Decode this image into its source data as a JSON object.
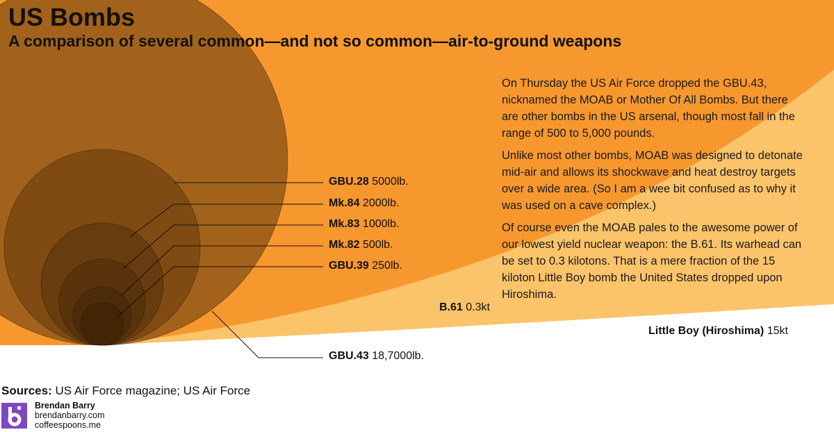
{
  "title": "US Bombs",
  "subtitle": "A comparison of several common—and not so common—air-to-ground weapons",
  "paragraphs": [
    "On Thursday the US Air Force dropped the GBU.43, nicknamed the MOAB or Mother Of All Bombs. But there are other bombs in the US arsenal, though most fall in the range of 500 to 5,000 pounds.",
    "Unlike most other bombs, MOAB was designed to detonate mid-air and allows its shockwave and heat destroy targets over a wide area. (So I am a wee bit confused as to why it was used on a cave complex.)",
    "Of course even the MOAB pales to the awesome power of our lowest yield nuclear weapon: the B.61. Its warhead can be set to 0.3 kilotons. That is a mere fraction of the 15 kiloton Little Boy bomb the United States dropped upon Hiroshima."
  ],
  "bombs": [
    {
      "name": "GBU.43",
      "value": "18,7000lb."
    },
    {
      "name": "GBU.28",
      "value": "5000lb."
    },
    {
      "name": "Mk.84",
      "value": "2000lb."
    },
    {
      "name": "Mk.83",
      "value": "1000lb."
    },
    {
      "name": "Mk.82",
      "value": "500lb."
    },
    {
      "name": "GBU.39",
      "value": "250lb."
    }
  ],
  "nuclear": [
    {
      "name": "B.61",
      "value": "0.3kt"
    },
    {
      "name": "Little Boy (Hiroshima)",
      "value": "15kt"
    }
  ],
  "sources": {
    "label": "Sources:",
    "text": "US Air Force magazine; US Air Force"
  },
  "credit": {
    "name": "Brendan Barry",
    "site1": "brendanbarry.com",
    "site2": "coffeespoons.me",
    "logo_letter": "b"
  },
  "colors": {
    "little_boy": "#fcc46a",
    "b61": "#f7982f",
    "bomb_fill": "#3c2105",
    "logo": "#7f47c2"
  }
}
